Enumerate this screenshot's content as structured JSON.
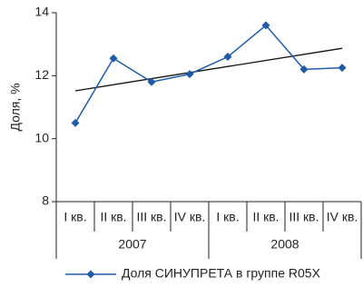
{
  "chart_data": {
    "type": "line",
    "y_label": "Доля, %",
    "categories": [
      "I кв.",
      "II кв.",
      "III кв.",
      "IV кв.",
      "I кв.",
      "II кв.",
      "III кв.",
      "IV кв."
    ],
    "groups": [
      "2007",
      "2008"
    ],
    "series": [
      {
        "name": "Доля СИНУПРЕТА в группе R05X",
        "color": "#1f5ba6",
        "values": [
          10.5,
          12.55,
          11.8,
          12.05,
          12.6,
          13.6,
          12.2,
          12.25
        ]
      }
    ],
    "trend": [
      11.52,
      12.87
    ],
    "trend_color": "#111111",
    "ylim": [
      8,
      14
    ],
    "yticks": [
      8,
      10,
      12,
      14
    ],
    "grid": false
  }
}
